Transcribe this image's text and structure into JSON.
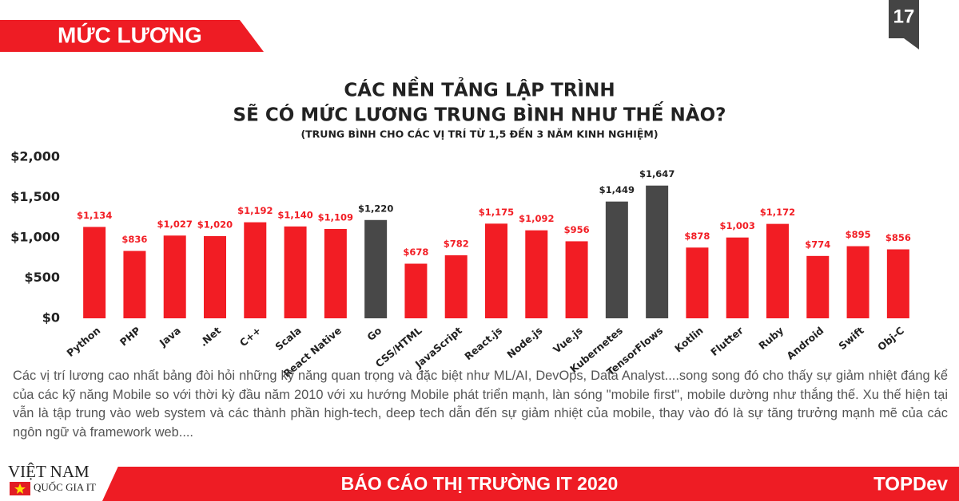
{
  "header": {
    "title": "MỨC LƯƠNG",
    "page": "17"
  },
  "chart_data": {
    "type": "bar",
    "title": [
      "CÁC NỀN TẢNG LẬP TRÌNH",
      "SẼ CÓ MỨC LƯƠNG TRUNG BÌNH NHƯ THẾ NÀO?"
    ],
    "subtitle": "(TRUNG BÌNH CHO CÁC VỊ TRÍ TỪ 1,5 ĐẾN 3 NĂM KINH NGHIỆM)",
    "categories": [
      "Python",
      "PHP",
      "Java",
      ".Net",
      "C++",
      "Scala",
      "React Native",
      "Go",
      "CSS/HTML",
      "JavaScript",
      "React.js",
      "Node.js",
      "Vue.js",
      "Kubernetes",
      "TensorFlows",
      "Kotlin",
      "Flutter",
      "Ruby",
      "Android",
      "Swift",
      "Obj-C"
    ],
    "values": [
      1134,
      836,
      1027,
      1020,
      1192,
      1140,
      1109,
      1220,
      678,
      782,
      1175,
      1092,
      956,
      1449,
      1647,
      878,
      1003,
      1172,
      774,
      895,
      856
    ],
    "value_labels": [
      "$1,134",
      "$836",
      "$1,027",
      "$1,020",
      "$1,192",
      "$1,140",
      "$1,109",
      "$1,220",
      "$678",
      "$782",
      "$1,175",
      "$1,092",
      "$956",
      "$1,449",
      "$1,647",
      "$878",
      "$1,003",
      "$1,172",
      "$774",
      "$895",
      "$856"
    ],
    "colors": [
      "#f21d24",
      "#f21d24",
      "#f21d24",
      "#f21d24",
      "#f21d24",
      "#f21d24",
      "#f21d24",
      "#484848",
      "#f21d24",
      "#f21d24",
      "#f21d24",
      "#f21d24",
      "#f21d24",
      "#484848",
      "#484848",
      "#f21d24",
      "#f21d24",
      "#f21d24",
      "#f21d24",
      "#f21d24",
      "#f21d24"
    ],
    "ylim": [
      0,
      2000
    ],
    "yticks": [
      {
        "value": 0,
        "label": "$0"
      },
      {
        "value": 500,
        "label": "$500"
      },
      {
        "value": 1000,
        "label": "$1,000"
      },
      {
        "value": 1500,
        "label": "$1,500"
      },
      {
        "value": 2000,
        "label": "$2,000"
      }
    ],
    "grid": false
  },
  "description": "Các vị trí lương cao nhất bảng đòi hỏi những kỹ năng quan trọng và đặc biệt như ML/AI, DevOps, Data Analyst....song song đó cho thấy sự giảm nhiệt đáng kể của các kỹ năng Mobile so với thời kỳ đầu năm 2010 với xu hướng Mobile phát triển mạnh, làn sóng \"mobile first\", mobile dường như thắng thế. Xu thế hiện tại vẫn là tập trung vào web system và các thành phần high-tech, deep tech dẫn đến sự giảm nhiệt của mobile, thay vào đó là sự tăng trưởng mạnh mẽ của các ngôn ngữ và framework web....",
  "footer": {
    "brand": "VIỆT NAM",
    "brand_sub": "QUỐC GIA IT",
    "title": "BÁO CÁO THỊ TRƯỜNG IT 2020",
    "logo": "TOPDev"
  }
}
